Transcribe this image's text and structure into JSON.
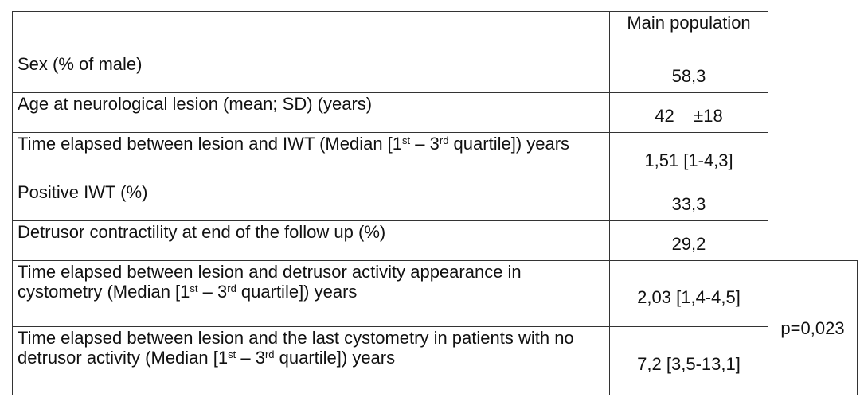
{
  "table": {
    "header": {
      "column": "Main population"
    },
    "rows": [
      {
        "label": [
          {
            "text": "Sex (% of male)"
          }
        ],
        "value": "58,3"
      },
      {
        "label": [
          {
            "text": "Age at neurological lesion (mean; SD) (years)"
          }
        ],
        "value": "42    ±18"
      },
      {
        "label": [
          {
            "text": "Time elapsed between lesion and IWT (Median [1"
          },
          {
            "sup": "st"
          },
          {
            "text": " – 3"
          },
          {
            "sup": "rd"
          },
          {
            "text": " quartile]) years"
          }
        ],
        "value": "1,51 [1-4,3]"
      },
      {
        "label": [
          {
            "text": "Positive IWT (%)"
          }
        ],
        "value": "33,3"
      },
      {
        "label": [
          {
            "text": "Detrusor contractility at end of the follow up (%)"
          }
        ],
        "value": "29,2"
      },
      {
        "label": [
          {
            "text": "Time elapsed between lesion and detrusor activity appearance in cystometry (Median [1"
          },
          {
            "sup": "st"
          },
          {
            "text": " – 3"
          },
          {
            "sup": "rd"
          },
          {
            "text": " quartile]) years"
          }
        ],
        "value": "2,03 [1,4-4,5]"
      },
      {
        "label": [
          {
            "text": "Time elapsed between lesion and the last cystometry in patients with no detrusor activity (Median [1"
          },
          {
            "sup": "st"
          },
          {
            "text": " – 3"
          },
          {
            "sup": "rd"
          },
          {
            "text": " quartile]) years"
          }
        ],
        "value": "7,2 [3,5-13,1]"
      }
    ],
    "comparison": {
      "rows": [
        5,
        6
      ],
      "text": "p=0,023"
    }
  }
}
